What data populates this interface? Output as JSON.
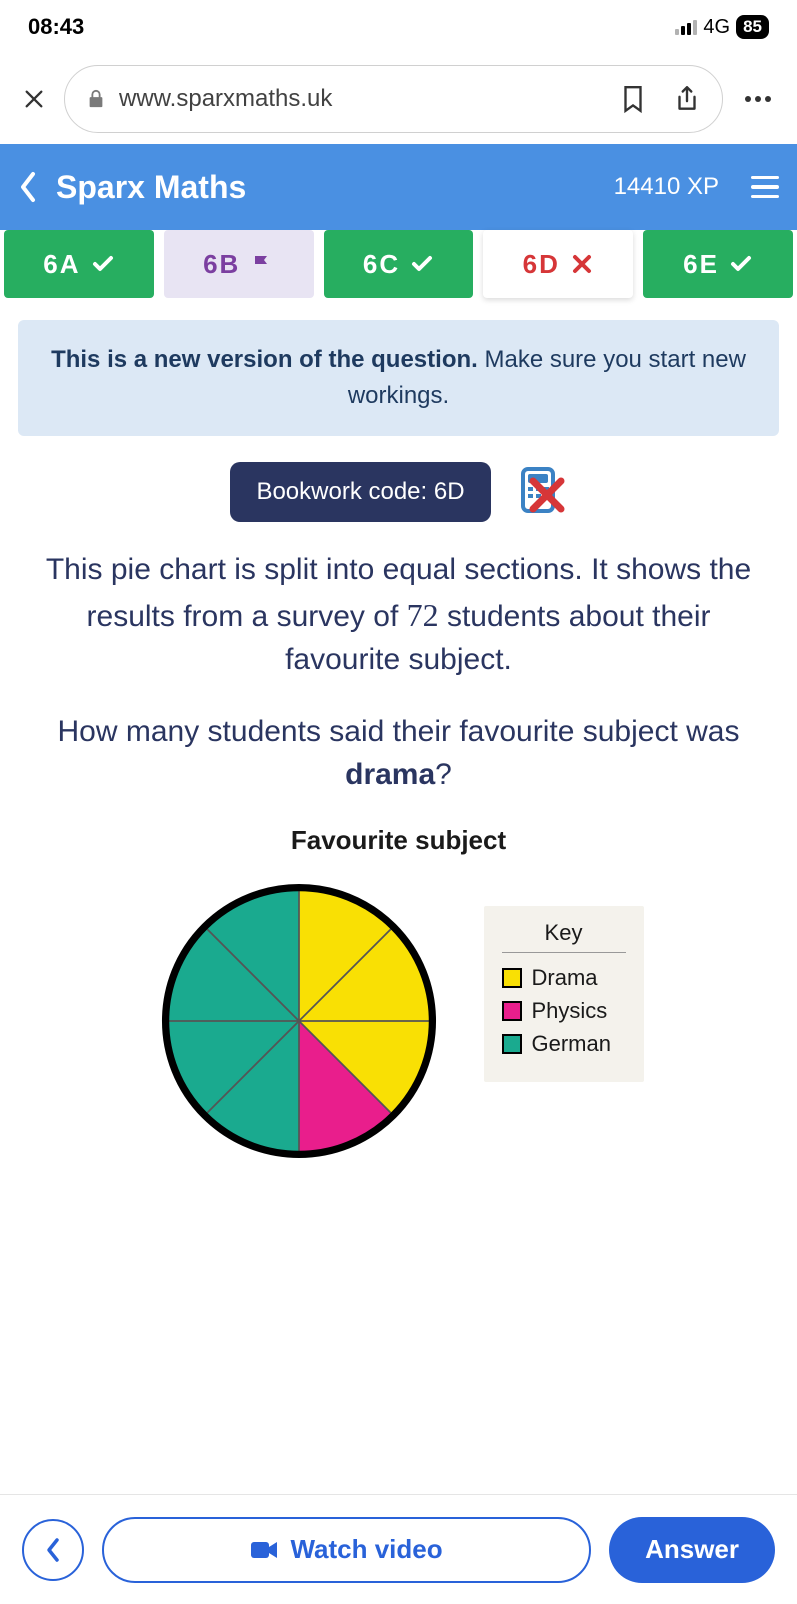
{
  "status": {
    "time": "08:43",
    "network": "4G",
    "battery": "85"
  },
  "browser": {
    "url": "www.sparxmaths.uk"
  },
  "header": {
    "title": "Sparx Maths",
    "xp": "14410 XP"
  },
  "tabs": [
    {
      "label": "6A",
      "state": "done"
    },
    {
      "label": "6B",
      "state": "flag"
    },
    {
      "label": "6C",
      "state": "done"
    },
    {
      "label": "6D",
      "state": "wrong"
    },
    {
      "label": "6E",
      "state": "done"
    }
  ],
  "notice": {
    "bold": "This is a new version of the question.",
    "rest": " Make sure you start new workings."
  },
  "bookwork": {
    "label": "Bookwork code: 6D"
  },
  "question": {
    "p1_a": "This pie chart is split into equal sections. It shows the results from a survey of ",
    "p1_num": "72",
    "p1_b": " students about their favourite subject.",
    "p2_a": "How many students said their favourite subject was ",
    "p2_bold": "drama",
    "p2_b": "?"
  },
  "chart": {
    "title": "Favourite subject",
    "type": "pie",
    "total_sections": 8,
    "slices": [
      {
        "label": "Drama",
        "sections": 3,
        "start": 0,
        "end": 135,
        "color": "#f9e004"
      },
      {
        "label": "Physics",
        "sections": 1,
        "start": 135,
        "end": 180,
        "color": "#e91e8c"
      },
      {
        "label": "German",
        "sections": 4,
        "start": 180,
        "end": 360,
        "color": "#1aaa8f"
      }
    ],
    "divider_color": "#555555",
    "outline_color": "#000000",
    "outline_width": 5,
    "background": "#ffffff",
    "key": {
      "title": "Key",
      "items": [
        {
          "label": "Drama",
          "color": "#f9e004"
        },
        {
          "label": "Physics",
          "color": "#e91e8c"
        },
        {
          "label": "German",
          "color": "#1aaa8f"
        }
      ]
    }
  },
  "footer": {
    "watch": "Watch video",
    "answer": "Answer"
  },
  "colors": {
    "header_bg": "#4a90e2",
    "tab_done": "#27ae60",
    "tab_flag_bg": "#e8e4f3",
    "tab_flag_fg": "#7b3fa0",
    "tab_wrong_fg": "#d63638",
    "notice_bg": "#dce8f5",
    "notice_fg": "#1e3a5f",
    "code_bg": "#2a3560",
    "primary": "#2962d9"
  }
}
